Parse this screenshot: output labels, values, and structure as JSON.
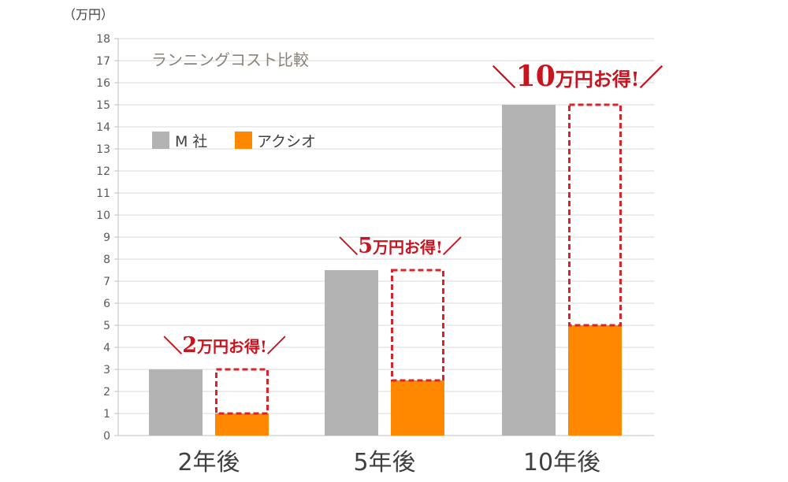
{
  "chart_data": {
    "type": "bar",
    "title": "ランニングコスト比較",
    "unit_label": "（万円）",
    "categories": [
      "2年後",
      "5年後",
      "10年後"
    ],
    "series": [
      {
        "name": "M 社",
        "values": [
          3,
          7.5,
          15
        ],
        "color": "#b3b3b3"
      },
      {
        "name": "アクシオ",
        "values": [
          1,
          2.5,
          5
        ],
        "color": "#ff8800"
      }
    ],
    "ylim": [
      0,
      18
    ],
    "yticks": [
      "0",
      "1",
      "2",
      "3",
      "4",
      "5",
      "6",
      "7",
      "8",
      "9",
      "10",
      "11",
      "12",
      "13",
      "14",
      "15",
      "16",
      "17",
      "18"
    ],
    "grid": true,
    "legend_position": "top-left",
    "annotations": [
      {
        "category": "2年後",
        "pre": "＼",
        "number": "2",
        "text": "万円お得!",
        "post": "／"
      },
      {
        "category": "5年後",
        "pre": "＼",
        "number": "5",
        "text": "万円お得!",
        "post": "／"
      },
      {
        "category": "10年後",
        "pre": "＼",
        "number": "10",
        "text": "万円お得!",
        "post": "／"
      }
    ],
    "savings_box_color": "#d9252a",
    "grid_color": "#d9d9d9",
    "axis_color": "#bfbfbf"
  }
}
